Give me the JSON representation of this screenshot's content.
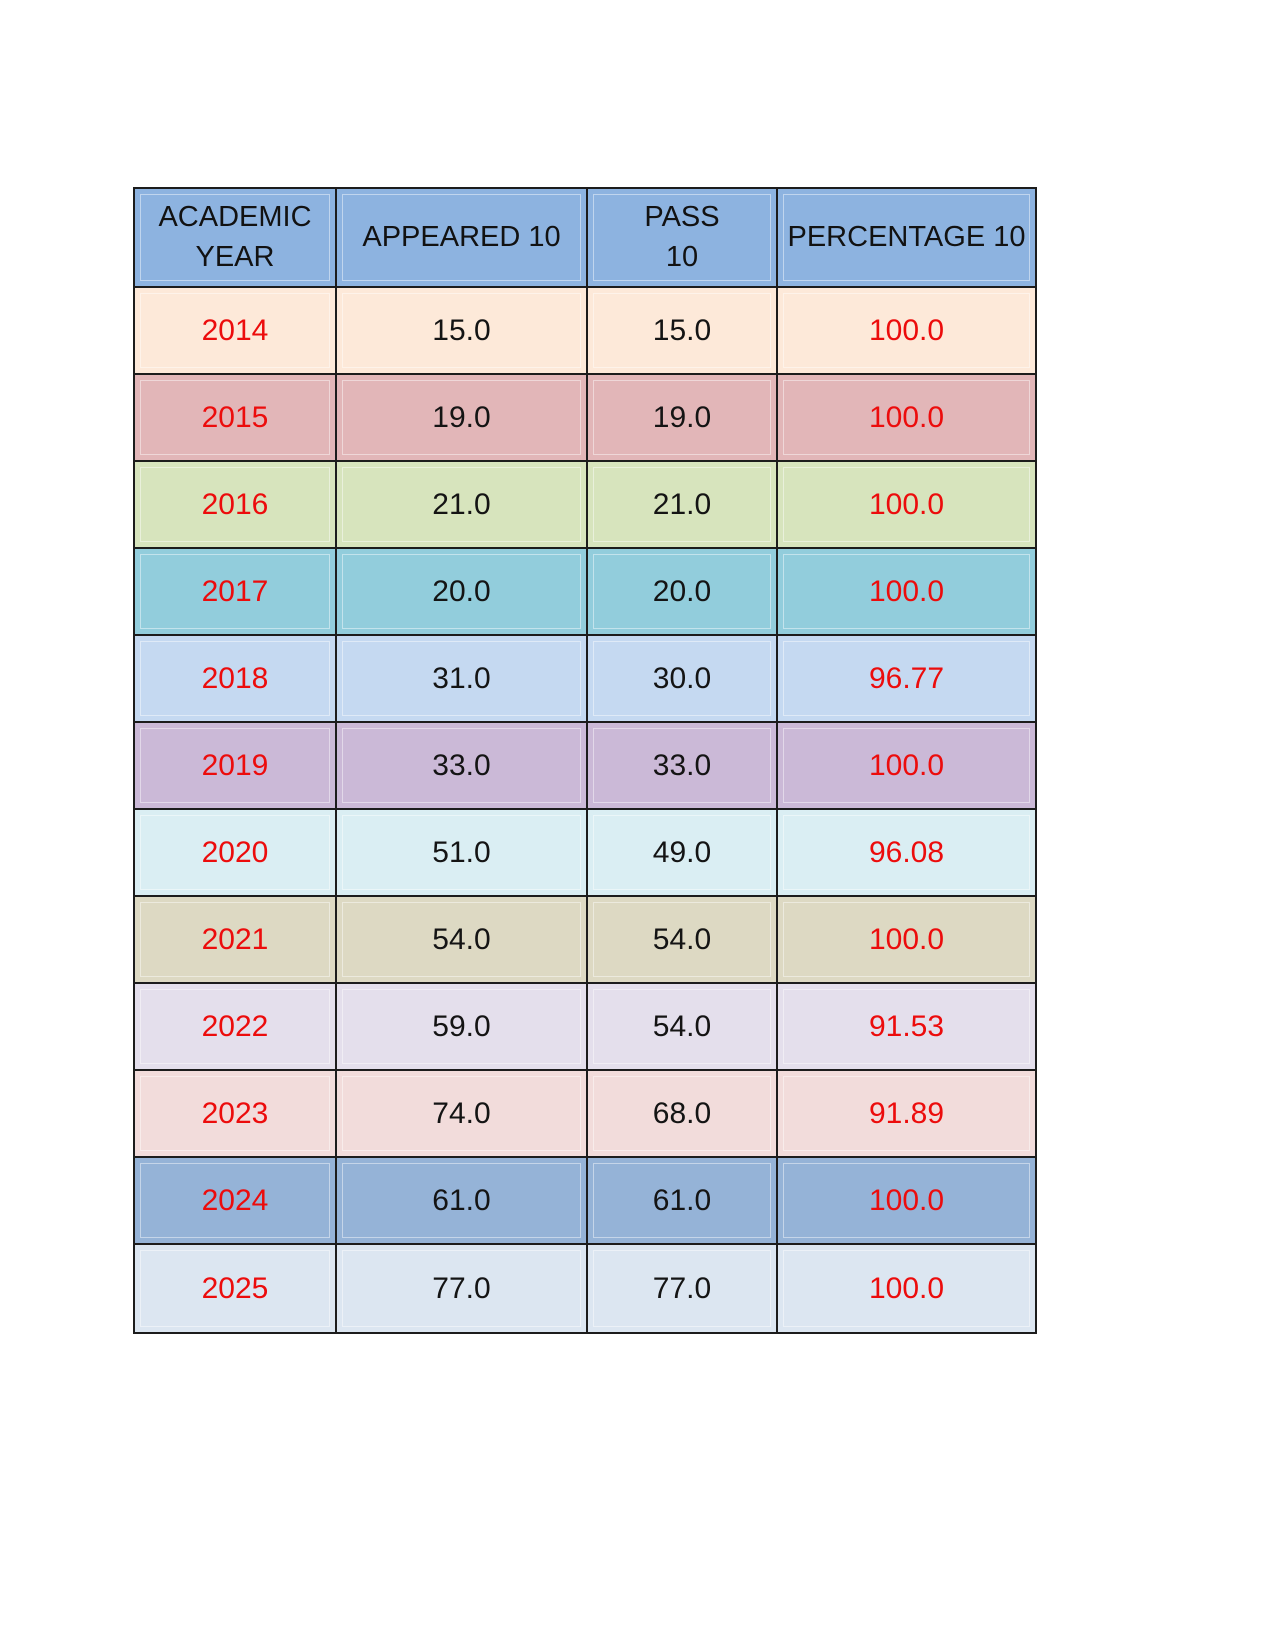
{
  "page": {
    "background": "#ffffff"
  },
  "colors": {
    "header_bg": "#8DB3E0",
    "grid_border": "#1c1c1c",
    "year_text": "#ec0c0c",
    "percentage_text": "#ec0c0c",
    "value_text": "#141414"
  },
  "table": {
    "headers": [
      "ACADEMIC\nYEAR",
      "APPEARED 10",
      "PASS\n10",
      "PERCENTAGE 10"
    ],
    "rows": [
      {
        "year": "2014",
        "appeared": "15.0",
        "pass": "15.0",
        "percentage": "100.0",
        "bg": "#FDE9D9"
      },
      {
        "year": "2015",
        "appeared": "19.0",
        "pass": "19.0",
        "percentage": "100.0",
        "bg": "#E2B6B8"
      },
      {
        "year": "2016",
        "appeared": "21.0",
        "pass": "21.0",
        "percentage": "100.0",
        "bg": "#D7E4BD"
      },
      {
        "year": "2017",
        "appeared": "20.0",
        "pass": "20.0",
        "percentage": "100.0",
        "bg": "#92CDDC"
      },
      {
        "year": "2018",
        "appeared": "31.0",
        "pass": "30.0",
        "percentage": "96.77",
        "bg": "#C5D9F1"
      },
      {
        "year": "2019",
        "appeared": "33.0",
        "pass": "33.0",
        "percentage": "100.0",
        "bg": "#CBB9D7"
      },
      {
        "year": "2020",
        "appeared": "51.0",
        "pass": "49.0",
        "percentage": "96.08",
        "bg": "#DAEEF3"
      },
      {
        "year": "2021",
        "appeared": "54.0",
        "pass": "54.0",
        "percentage": "100.0",
        "bg": "#DDD9C3"
      },
      {
        "year": "2022",
        "appeared": "59.0",
        "pass": "54.0",
        "percentage": "91.53",
        "bg": "#E4DFEC"
      },
      {
        "year": "2023",
        "appeared": "74.0",
        "pass": "68.0",
        "percentage": "91.89",
        "bg": "#F2DCDB"
      },
      {
        "year": "2024",
        "appeared": "61.0",
        "pass": "61.0",
        "percentage": "100.0",
        "bg": "#95B3D7"
      },
      {
        "year": "2025",
        "appeared": "77.0",
        "pass": "77.0",
        "percentage": "100.0",
        "bg": "#DCE6F1"
      }
    ]
  },
  "chart_data": {
    "type": "table",
    "title": "",
    "columns": [
      "ACADEMIC YEAR",
      "APPEARED 10",
      "PASS 10",
      "PERCENTAGE 10"
    ],
    "rows": [
      [
        2014,
        15.0,
        15.0,
        100.0
      ],
      [
        2015,
        19.0,
        19.0,
        100.0
      ],
      [
        2016,
        21.0,
        21.0,
        100.0
      ],
      [
        2017,
        20.0,
        20.0,
        100.0
      ],
      [
        2018,
        31.0,
        30.0,
        96.77
      ],
      [
        2019,
        33.0,
        33.0,
        100.0
      ],
      [
        2020,
        51.0,
        49.0,
        96.08
      ],
      [
        2021,
        54.0,
        54.0,
        100.0
      ],
      [
        2022,
        59.0,
        54.0,
        91.53
      ],
      [
        2023,
        74.0,
        68.0,
        91.89
      ],
      [
        2024,
        61.0,
        61.0,
        100.0
      ],
      [
        2025,
        77.0,
        77.0,
        100.0
      ]
    ]
  }
}
